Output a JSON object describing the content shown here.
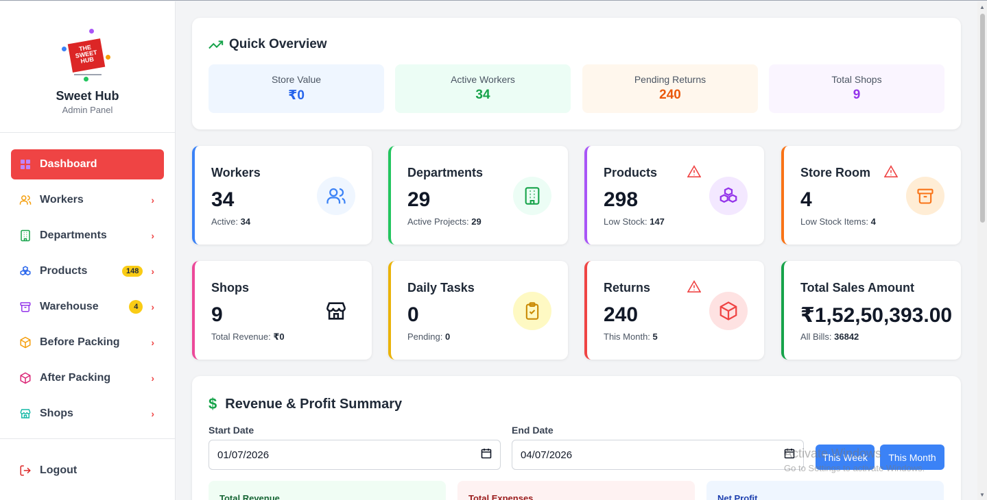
{
  "brand": {
    "logo_text": "THE SWEET HUB",
    "name": "Sweet Hub",
    "subtitle": "Admin Panel"
  },
  "nav": [
    {
      "label": "Dashboard",
      "icon": "grid-icon",
      "active": true
    },
    {
      "label": "Workers",
      "icon": "users-icon"
    },
    {
      "label": "Departments",
      "icon": "building-icon"
    },
    {
      "label": "Products",
      "icon": "cubes-icon",
      "badge": "148"
    },
    {
      "label": "Warehouse",
      "icon": "archive-icon",
      "badge": "4"
    },
    {
      "label": "Before Packing",
      "icon": "box-icon"
    },
    {
      "label": "After Packing",
      "icon": "box-icon"
    },
    {
      "label": "Shops",
      "icon": "store-icon"
    }
  ],
  "logout": "Logout",
  "overview": {
    "title": "Quick Overview",
    "boxes": [
      {
        "label": "Store Value",
        "value": "₹0",
        "color": "#2563eb",
        "bg": "#eff6ff"
      },
      {
        "label": "Active Workers",
        "value": "34",
        "color": "#16a34a",
        "bg": "#ecfdf5"
      },
      {
        "label": "Pending Returns",
        "value": "240",
        "color": "#ea580c",
        "bg": "#fff7ed"
      },
      {
        "label": "Total Shops",
        "value": "9",
        "color": "#9333ea",
        "bg": "#faf5ff"
      }
    ]
  },
  "cards": [
    {
      "title": "Workers",
      "value": "34",
      "sub_label": "Active:",
      "sub_value": "34",
      "accent": "#3b82f6",
      "icon": "users-icon"
    },
    {
      "title": "Departments",
      "value": "29",
      "sub_label": "Active Projects:",
      "sub_value": "29",
      "accent": "#22c55e",
      "icon": "building-icon"
    },
    {
      "title": "Products",
      "value": "298",
      "sub_label": "Low Stock:",
      "sub_value": "147",
      "accent": "#a855f7",
      "icon": "cubes-icon",
      "warning": true
    },
    {
      "title": "Store Room",
      "value": "4",
      "sub_label": "Low Stock Items:",
      "sub_value": "4",
      "accent": "#f97316",
      "icon": "archive-icon",
      "warning": true
    },
    {
      "title": "Shops",
      "value": "9",
      "sub_label": "Total Revenue:",
      "sub_value": "₹0",
      "accent": "#ec4899",
      "icon": "store-icon"
    },
    {
      "title": "Daily Tasks",
      "value": "0",
      "sub_label": "Pending:",
      "sub_value": "0",
      "accent": "#eab308",
      "icon": "clipboard-check-icon"
    },
    {
      "title": "Returns",
      "value": "240",
      "sub_label": "This Month:",
      "sub_value": "5",
      "accent": "#ef4444",
      "icon": "box-icon",
      "warning": true
    },
    {
      "title": "Total Sales Amount",
      "value": "₹1,52,50,393.00",
      "sub_label": "All Bills:",
      "sub_value": "36842",
      "accent": "#16a34a"
    }
  ],
  "revenue": {
    "title": "Revenue & Profit Summary",
    "start_label": "Start Date",
    "start_value": "01/07/2026",
    "end_label": "End Date",
    "end_value": "04/07/2026",
    "btn_week": "This Week",
    "btn_month": "This Month",
    "summary": [
      {
        "label": "Total Revenue",
        "color": "#166534",
        "bg": "#f0fdf4"
      },
      {
        "label": "Total Expenses",
        "color": "#991b1b",
        "bg": "#fef2f2"
      },
      {
        "label": "Net Profit",
        "color": "#1e40af",
        "bg": "#eff6ff"
      }
    ]
  },
  "watermark": {
    "line1": "Activate Windows",
    "line2": "Go to Settings to activate Windows."
  }
}
